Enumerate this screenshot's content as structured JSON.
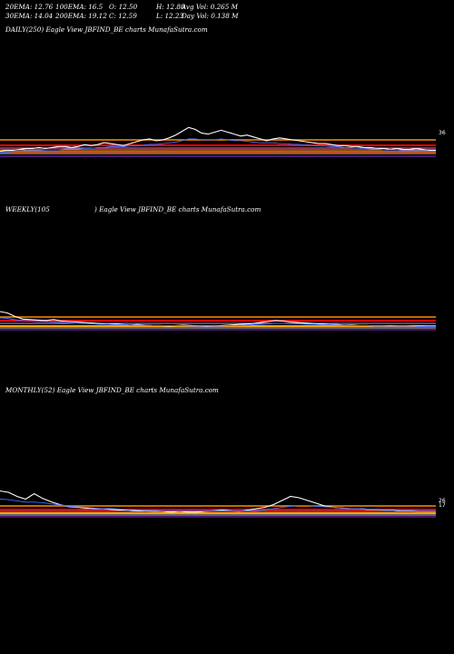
{
  "stats": {
    "row1": [
      "20EMA: 12.76",
      "100EMA: 16.5",
      "O: 12.50",
      "H: 12.80",
      "Avg Vol: 0.265 M"
    ],
    "row2": [
      "30EMA: 14.04",
      "200EMA: 19.12",
      "C: 12.59",
      "L: 12.23",
      "Day Vol: 0.138  M"
    ]
  },
  "chart_data": [
    {
      "type": "line",
      "title": "DAILY(250) Eagle   View  JBFIND_BE charts MunafaSutra.com",
      "tick_labels": [
        "36",
        "",
        "",
        "",
        "",
        "",
        ""
      ],
      "colors": {
        "price": "#ffffff",
        "ema_short": "#3f6fff",
        "bands": [
          "#ff8c00",
          "#ff0000",
          "#ff69b4",
          "#ffa500",
          "#ff4500",
          "#c8c8c8",
          "#8a2be2"
        ]
      },
      "series": [
        {
          "values": [
            9,
            10,
            10,
            11,
            12,
            12,
            13,
            12,
            13,
            14,
            14,
            13,
            14,
            16,
            15,
            16,
            18,
            17,
            16,
            15,
            17,
            19,
            21,
            22,
            20,
            21,
            23,
            26,
            30,
            34,
            32,
            28,
            27,
            29,
            31,
            29,
            27,
            25,
            26,
            24,
            22,
            20,
            22,
            23,
            22,
            21,
            20,
            19,
            18,
            17,
            17,
            16,
            15,
            15,
            14,
            14,
            13,
            13,
            12,
            12,
            11,
            12,
            11,
            11,
            12,
            11,
            10,
            10
          ]
        },
        {
          "values": [
            10,
            10,
            11,
            11,
            12,
            12,
            12,
            13,
            13,
            13,
            14,
            14,
            14,
            15,
            15,
            16,
            16,
            17,
            17,
            17,
            18,
            18,
            19,
            20,
            20,
            21,
            22,
            23,
            25,
            27,
            27,
            26,
            26,
            26,
            27,
            26,
            25,
            25,
            24,
            23,
            22,
            22,
            22,
            21,
            21,
            20,
            20,
            19,
            19,
            18,
            18,
            17,
            17,
            16,
            16,
            15,
            15,
            14,
            14,
            13,
            13,
            13,
            12,
            12,
            12,
            12,
            11,
            11
          ]
        }
      ]
    },
    {
      "type": "line",
      "title_left": "WEEKLY(105",
      "title_right": ") Eagle   View  JBFIND_BE charts MunafaSutra.com",
      "tick_labels": [
        "",
        "",
        ""
      ],
      "colors": {
        "price": "#ffffff",
        "ema_short": "#3f6fff",
        "bands": [
          "#ff8c00",
          "#ff0000",
          "#ff69b4",
          "#ffa500",
          "#c8c8c8",
          "#8a2be2"
        ]
      },
      "series": [
        {
          "values": [
            40,
            37,
            30,
            25,
            24,
            23,
            22,
            24,
            21,
            20,
            19,
            18,
            17,
            16,
            15,
            15,
            14,
            13,
            14,
            13,
            12,
            12,
            11,
            12,
            13,
            12,
            11,
            10,
            11,
            12,
            13,
            14,
            15,
            16,
            18,
            20,
            22,
            21,
            19,
            18,
            17,
            16,
            15,
            14,
            14,
            13,
            13,
            12,
            12,
            11,
            11,
            12,
            11,
            11,
            12,
            11,
            10,
            10
          ]
        },
        {
          "values": [
            30,
            29,
            26,
            24,
            23,
            22,
            22,
            21,
            20,
            19,
            18,
            18,
            17,
            16,
            16,
            15,
            15,
            14,
            14,
            14,
            13,
            13,
            13,
            13,
            13,
            12,
            12,
            12,
            12,
            12,
            13,
            13,
            14,
            15,
            16,
            17,
            18,
            18,
            17,
            17,
            16,
            16,
            15,
            15,
            14,
            14,
            13,
            13,
            13,
            12,
            12,
            12,
            12,
            12,
            12,
            11,
            11,
            11
          ]
        }
      ]
    },
    {
      "type": "line",
      "title": "MONTHLY(52) Eagle   View  JBFIND_BE charts MunafaSutra.com",
      "tick_labels": [
        "26",
        "17",
        "",
        ""
      ],
      "colors": {
        "price": "#ffffff",
        "ema_short": "#3f6fff",
        "bands": [
          "#ff8c00",
          "#ff0000",
          "#ff69b4",
          "#ffa500",
          "#c8c8c8",
          "#8a2be2"
        ]
      },
      "series": [
        {
          "values": [
            38,
            36,
            30,
            26,
            34,
            27,
            22,
            18,
            15,
            14,
            13,
            12,
            12,
            11,
            10,
            10,
            9,
            9,
            8,
            8,
            7,
            8,
            7,
            7,
            8,
            9,
            10,
            9,
            8,
            10,
            12,
            14,
            18,
            24,
            30,
            28,
            24,
            20,
            16,
            14,
            13,
            12,
            12,
            11,
            11,
            10,
            10,
            9,
            9,
            8,
            8,
            8
          ]
        },
        {
          "values": [
            30,
            29,
            27,
            25,
            25,
            24,
            22,
            20,
            18,
            17,
            16,
            15,
            14,
            14,
            13,
            12,
            12,
            11,
            11,
            10,
            10,
            10,
            10,
            10,
            10,
            10,
            10,
            10,
            10,
            10,
            11,
            12,
            14,
            16,
            18,
            19,
            19,
            18,
            17,
            16,
            15,
            14,
            14,
            13,
            13,
            12,
            12,
            11,
            11,
            10,
            10,
            10
          ]
        }
      ]
    }
  ]
}
